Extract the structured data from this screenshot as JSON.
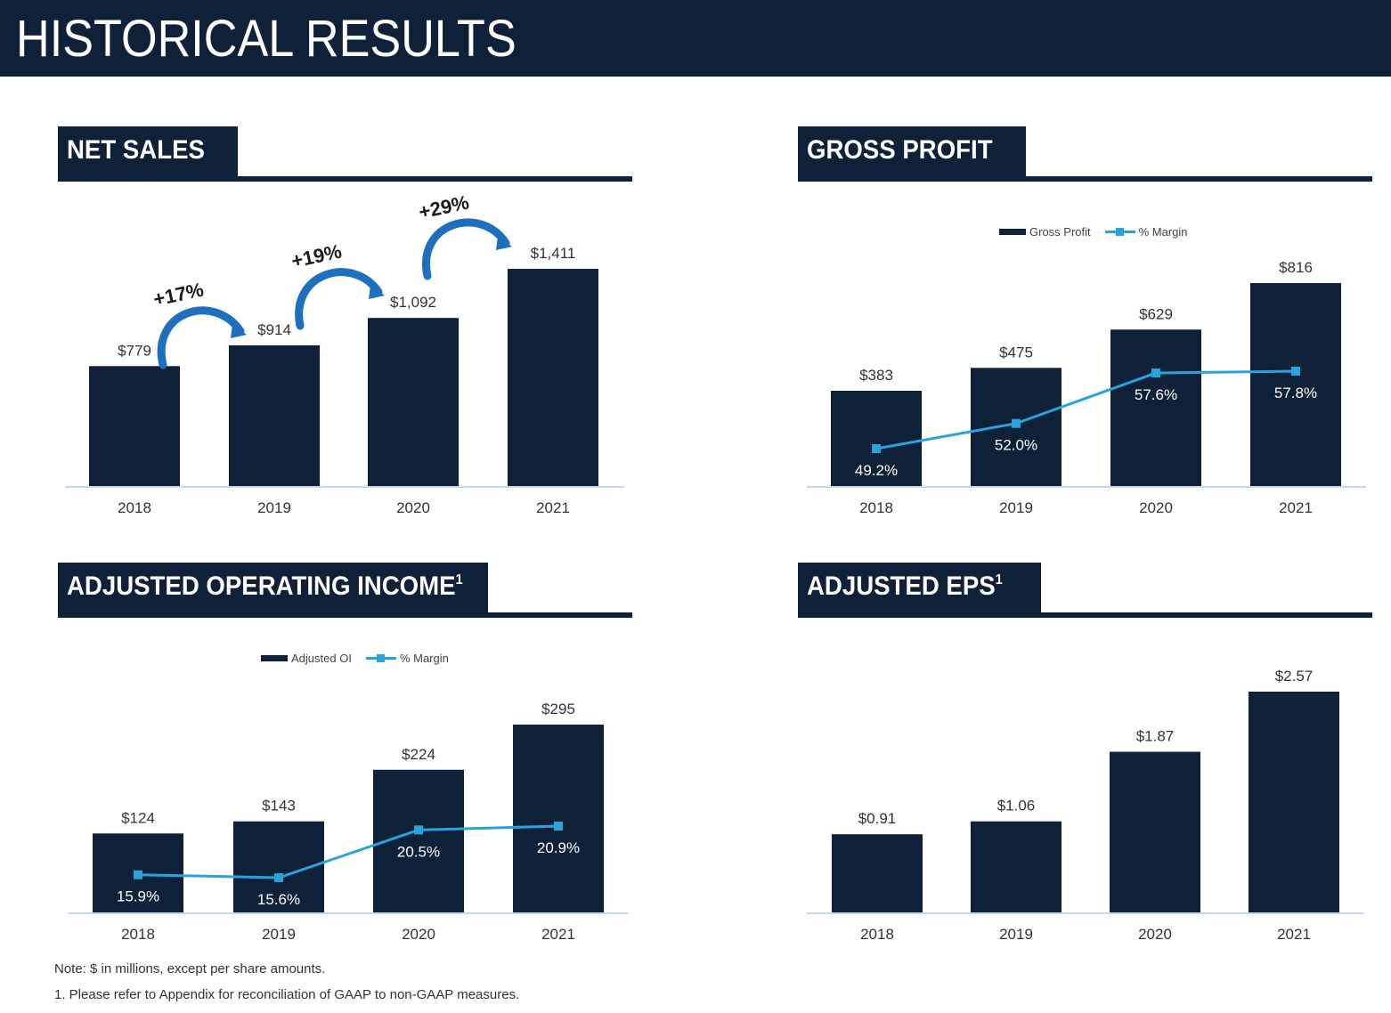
{
  "page": {
    "title": "HISTORICAL RESULTS",
    "note": "Note: $ in millions, except per share amounts.",
    "footnote": "1. Please refer to Appendix for reconciliation of GAAP to non-GAAP measures."
  },
  "colors": {
    "navy": "#0f2039",
    "accent": "#28a3db",
    "baseline": "#c9d7ea"
  },
  "panels": {
    "net_sales": {
      "title": "NET SALES",
      "sup": ""
    },
    "gross_profit": {
      "title": "GROSS PROFIT",
      "sup": "",
      "legend": {
        "bar": "Gross Profit",
        "line": "% Margin"
      }
    },
    "adj_oi": {
      "title": "ADJUSTED OPERATING INCOME",
      "sup": "1",
      "legend": {
        "bar": "Adjusted OI",
        "line": "% Margin"
      }
    },
    "adj_eps": {
      "title": "ADJUSTED EPS",
      "sup": "1"
    }
  },
  "chart_data": [
    {
      "id": "net_sales",
      "type": "bar",
      "title": "NET SALES",
      "categories": [
        "2018",
        "2019",
        "2020",
        "2021"
      ],
      "values": [
        779,
        914,
        1092,
        1411
      ],
      "value_labels": [
        "$779",
        "$914",
        "$1,092",
        "$1,411"
      ],
      "growth_labels": [
        "+17%",
        "+19%",
        "+29%"
      ],
      "ylim": [
        0,
        1411
      ]
    },
    {
      "id": "gross_profit",
      "type": "bar",
      "title": "GROSS PROFIT",
      "categories": [
        "2018",
        "2019",
        "2020",
        "2021"
      ],
      "series": [
        {
          "name": "Gross Profit",
          "values": [
            383,
            475,
            629,
            816
          ],
          "labels": [
            "$383",
            "$475",
            "$629",
            "$816"
          ]
        },
        {
          "name": "% Margin",
          "type": "line",
          "values": [
            49.2,
            52.0,
            57.6,
            57.8
          ],
          "labels": [
            "49.2%",
            "52.0%",
            "57.6%",
            "57.8%"
          ]
        }
      ],
      "legend_position": "top-center"
    },
    {
      "id": "adj_oi",
      "type": "bar",
      "title": "ADJUSTED OPERATING INCOME",
      "categories": [
        "2018",
        "2019",
        "2020",
        "2021"
      ],
      "series": [
        {
          "name": "Adjusted OI",
          "values": [
            124,
            143,
            224,
            295
          ],
          "labels": [
            "$124",
            "$143",
            "$224",
            "$295"
          ]
        },
        {
          "name": "% Margin",
          "type": "line",
          "values": [
            15.9,
            15.6,
            20.5,
            20.9
          ],
          "labels": [
            "15.9%",
            "15.6%",
            "20.5%",
            "20.9%"
          ]
        }
      ],
      "legend_position": "top-center"
    },
    {
      "id": "adj_eps",
      "type": "bar",
      "title": "ADJUSTED EPS",
      "categories": [
        "2018",
        "2019",
        "2020",
        "2021"
      ],
      "values": [
        0.91,
        1.06,
        1.87,
        2.57
      ],
      "value_labels": [
        "$0.91",
        "$1.06",
        "$1.87",
        "$2.57"
      ]
    }
  ]
}
